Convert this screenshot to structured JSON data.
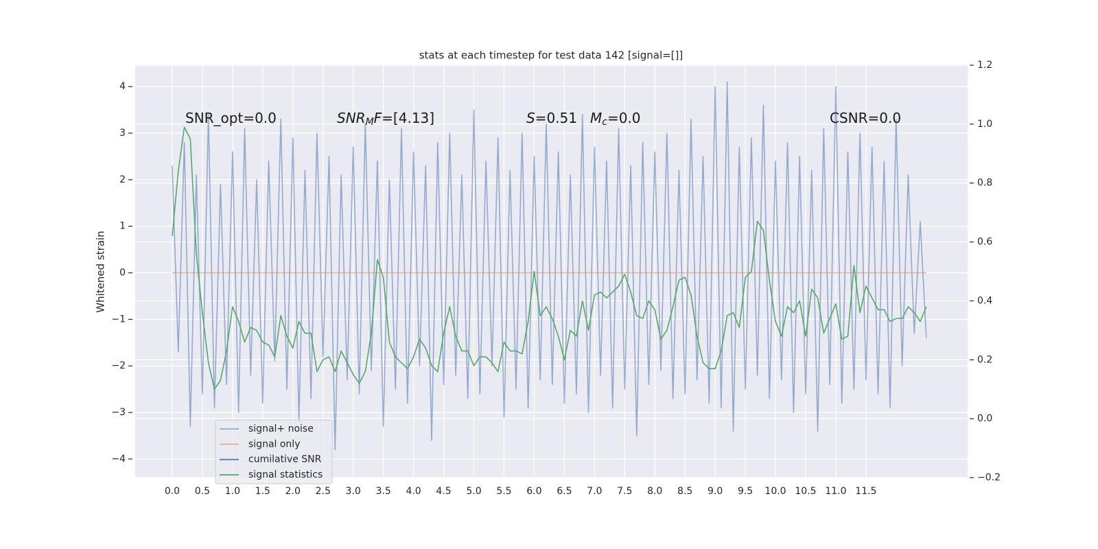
{
  "chart_data": {
    "type": "line",
    "title": "stats at each timestep for test data 142 [signal=[]]",
    "y_label": "Whitened strain",
    "annotations": [
      [
        {
          "text": "SNR_opt=0.0"
        }
      ],
      [
        {
          "text": "SNR",
          "italic": true
        },
        {
          "text": "M",
          "italic": true,
          "sub": true
        },
        {
          "text": "F",
          "italic": true
        },
        {
          "text": "=[4.13]"
        }
      ],
      [
        {
          "text": "S",
          "italic": true
        },
        {
          "text": "=0.51"
        }
      ],
      [
        {
          "text": "M",
          "italic": true
        },
        {
          "text": "c",
          "italic": true,
          "sub": true
        },
        {
          "text": "=0.0"
        }
      ],
      [
        {
          "text": "CSNR=0.0"
        }
      ]
    ],
    "x": [
      0,
      0.1,
      0.2,
      0.3,
      0.4,
      0.5,
      0.6,
      0.7,
      0.8,
      0.9,
      1,
      1.1,
      1.2,
      1.3,
      1.4,
      1.5,
      1.6,
      1.7,
      1.8,
      1.9,
      2,
      2.1,
      2.2,
      2.3,
      2.4,
      2.5,
      2.6,
      2.7,
      2.8,
      2.9,
      3,
      3.1,
      3.2,
      3.3,
      3.4,
      3.5,
      3.6,
      3.7,
      3.8,
      3.9,
      4,
      4.1,
      4.2,
      4.3,
      4.4,
      4.5,
      4.6,
      4.7,
      4.8,
      4.9,
      5,
      5.1,
      5.2,
      5.3,
      5.4,
      5.5,
      5.6,
      5.7,
      5.8,
      5.9,
      6,
      6.1,
      6.2,
      6.3,
      6.4,
      6.5,
      6.6,
      6.7,
      6.8,
      6.9,
      7,
      7.1,
      7.2,
      7.3,
      7.4,
      7.5,
      7.6,
      7.7,
      7.8,
      7.9,
      8,
      8.1,
      8.2,
      8.3,
      8.4,
      8.5,
      8.6,
      8.7,
      8.8,
      8.9,
      9,
      9.1,
      9.2,
      9.3,
      9.4,
      9.5,
      9.6,
      9.7,
      9.8,
      9.9,
      10,
      10.1,
      10.2,
      10.3,
      10.4,
      10.5,
      10.6,
      10.7,
      10.8,
      10.9,
      11,
      11.1,
      11.2,
      11.3,
      11.4,
      11.5,
      11.6,
      11.7,
      11.8,
      11.9,
      12,
      12.1,
      12.2,
      12.3,
      12.4,
      12.5
    ],
    "series": [
      {
        "name": "signal+ noise",
        "color": "#4c72b0",
        "alpha": 0.55,
        "values": [
          2.3,
          -1.7,
          2.8,
          -3.3,
          2.1,
          -2.6,
          3.4,
          -2.9,
          1.9,
          -2.4,
          2.6,
          -3.0,
          3.1,
          -2.2,
          2.0,
          -2.8,
          2.4,
          -1.9,
          3.3,
          -2.5,
          2.9,
          -3.2,
          2.2,
          -2.7,
          3.0,
          -1.8,
          2.5,
          -3.8,
          2.1,
          -2.3,
          2.7,
          -2.6,
          3.2,
          -2.1,
          2.4,
          -3.3,
          2.0,
          -2.5,
          3.1,
          -2.8,
          2.6,
          -2.0,
          2.3,
          -3.6,
          2.8,
          -2.4,
          3.0,
          -2.2,
          2.1,
          -2.7,
          3.5,
          -2.6,
          2.4,
          -2.0,
          2.9,
          -3.1,
          2.2,
          -2.5,
          3.0,
          -2.9,
          2.5,
          -2.3,
          3.2,
          -2.4,
          2.6,
          -2.8,
          2.1,
          -2.6,
          3.4,
          -3.0,
          2.7,
          -2.2,
          2.4,
          -2.9,
          3.1,
          -2.5,
          2.3,
          -3.5,
          2.8,
          -2.4,
          2.6,
          -2.1,
          3.0,
          -2.7,
          2.2,
          -2.6,
          3.3,
          -2.3,
          2.5,
          -2.8,
          4.0,
          -2.9,
          4.1,
          -3.4,
          2.7,
          -2.5,
          2.9,
          -2.2,
          3.6,
          -2.7,
          2.4,
          -2.3,
          2.8,
          -3.0,
          2.5,
          -2.6,
          2.2,
          -3.4,
          3.1,
          -2.4,
          4.0,
          -2.8,
          2.6,
          -2.5,
          3.0,
          -2.3,
          2.7,
          -2.6,
          2.4,
          -2.9,
          3.3,
          -2.0,
          2.1,
          -1.3,
          1.1,
          -1.4
        ]
      },
      {
        "name": "signal only",
        "color": "#dd8452",
        "alpha": 0.6,
        "x": [
          0,
          12.5
        ],
        "values": [
          0,
          0
        ]
      },
      {
        "name": "cumilative SNR",
        "color": "#4c72b0",
        "alpha": 1
      },
      {
        "name": "signal statistics",
        "color": "#55a868",
        "alpha": 1,
        "axis": "y2",
        "values": [
          0.62,
          0.84,
          0.99,
          0.95,
          0.56,
          0.36,
          0.19,
          0.1,
          0.13,
          0.23,
          0.38,
          0.33,
          0.26,
          0.31,
          0.3,
          0.26,
          0.25,
          0.21,
          0.35,
          0.28,
          0.24,
          0.33,
          0.29,
          0.29,
          0.16,
          0.2,
          0.21,
          0.16,
          0.23,
          0.19,
          0.15,
          0.12,
          0.16,
          0.29,
          0.54,
          0.48,
          0.26,
          0.21,
          0.19,
          0.17,
          0.21,
          0.27,
          0.24,
          0.18,
          0.16,
          0.29,
          0.38,
          0.28,
          0.23,
          0.23,
          0.18,
          0.21,
          0.21,
          0.19,
          0.16,
          0.26,
          0.23,
          0.23,
          0.22,
          0.33,
          0.5,
          0.35,
          0.38,
          0.34,
          0.28,
          0.2,
          0.3,
          0.28,
          0.4,
          0.3,
          0.42,
          0.43,
          0.41,
          0.43,
          0.45,
          0.49,
          0.43,
          0.35,
          0.34,
          0.4,
          0.37,
          0.27,
          0.3,
          0.38,
          0.47,
          0.48,
          0.42,
          0.28,
          0.19,
          0.17,
          0.17,
          0.23,
          0.35,
          0.36,
          0.31,
          0.48,
          0.5,
          0.67,
          0.64,
          0.47,
          0.33,
          0.28,
          0.38,
          0.36,
          0.4,
          0.28,
          0.44,
          0.41,
          0.29,
          0.34,
          0.39,
          0.27,
          0.28,
          0.52,
          0.36,
          0.45,
          0.41,
          0.37,
          0.37,
          0.33,
          0.34,
          0.34,
          0.38,
          0.36,
          0.33,
          0.38
        ]
      }
    ],
    "xlim": [
      -0.614,
      13.185
    ],
    "xticks": [
      {
        "value": 0,
        "label": "0.0"
      },
      0.5,
      {
        "value": 1,
        "label": "1.0"
      },
      1.5,
      {
        "value": 2,
        "label": "2.0"
      },
      2.5,
      {
        "value": 3,
        "label": "3.0"
      },
      3.5,
      {
        "value": 4,
        "label": "4.0"
      },
      4.5,
      {
        "value": 5,
        "label": "5.0"
      },
      5.5,
      {
        "value": 6,
        "label": "6.0"
      },
      6.5,
      {
        "value": 7,
        "label": "7.0"
      },
      7.5,
      {
        "value": 8,
        "label": "8.0"
      },
      8.5,
      {
        "value": 9,
        "label": "9.0"
      },
      9.5,
      {
        "value": 10,
        "label": "10.0"
      },
      10.5,
      {
        "value": 11,
        "label": "11.0"
      },
      11.5
    ],
    "ylim": [
      -4.4,
      4.46
    ],
    "yticks": [
      {
        "value": -4,
        "label": "−4"
      },
      {
        "value": -3,
        "label": "−3"
      },
      {
        "value": -2,
        "label": "−2"
      },
      {
        "value": -1,
        "label": "−1"
      },
      0,
      1,
      2,
      3,
      4
    ],
    "y2lim": [
      -0.2,
      1.2
    ],
    "y2ticks": [
      {
        "value": -0.2,
        "label": "−0.2"
      },
      {
        "value": 0,
        "label": "0.0"
      },
      0.2,
      0.4,
      0.6,
      0.8,
      {
        "value": 1,
        "label": "1.0"
      },
      1.2
    ],
    "grid": true,
    "legend": "lower left"
  }
}
